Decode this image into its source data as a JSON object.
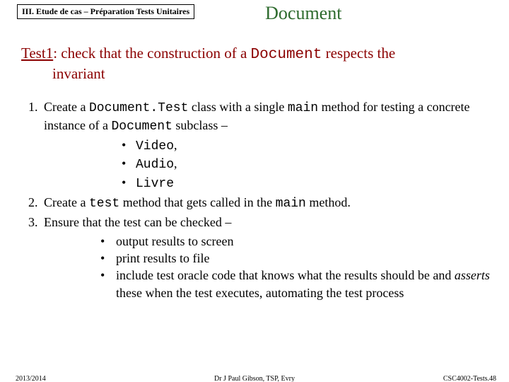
{
  "header": {
    "tag": "III. Etude de cas – Préparation Tests Unitaires",
    "title": "Document"
  },
  "test": {
    "label": "Test1",
    "line1_a": ":   check that the construction of a ",
    "line1_mono": "Document",
    "line1_b": " respects the",
    "line2": "invariant"
  },
  "steps": {
    "s1": {
      "a": "Create a ",
      "mono1": "Document.Test",
      "b": " class with a single ",
      "mono2": "main",
      "c": " method for testing a concrete instance of a ",
      "mono3": "Document",
      "d": " subclass –",
      "sub": {
        "i1_mono": "Video",
        "i1_tail": ",",
        "i2_mono": "Audio",
        "i2_tail": ",",
        "i3_mono": "Livre"
      }
    },
    "s2": {
      "a": "Create a ",
      "mono1": "test",
      "b": " method that gets called in the ",
      "mono2": "main",
      "c": " method."
    },
    "s3": {
      "a": "Ensure that the test can be checked –",
      "sub": {
        "i1": "output results to screen",
        "i2": "print results to file",
        "i3_a": "include test oracle code that knows what the results should be and ",
        "i3_em": "asserts",
        "i3_b": " these when the test executes, automating the test process"
      }
    }
  },
  "footer": {
    "year": "2013/2014",
    "center": "Dr J Paul Gibson, TSP, Evry",
    "right": "CSC4002-Tests.48"
  },
  "colors": {
    "title": "#2e6b2e",
    "heading": "#8b0000",
    "text": "#000000",
    "bg": "#ffffff"
  }
}
